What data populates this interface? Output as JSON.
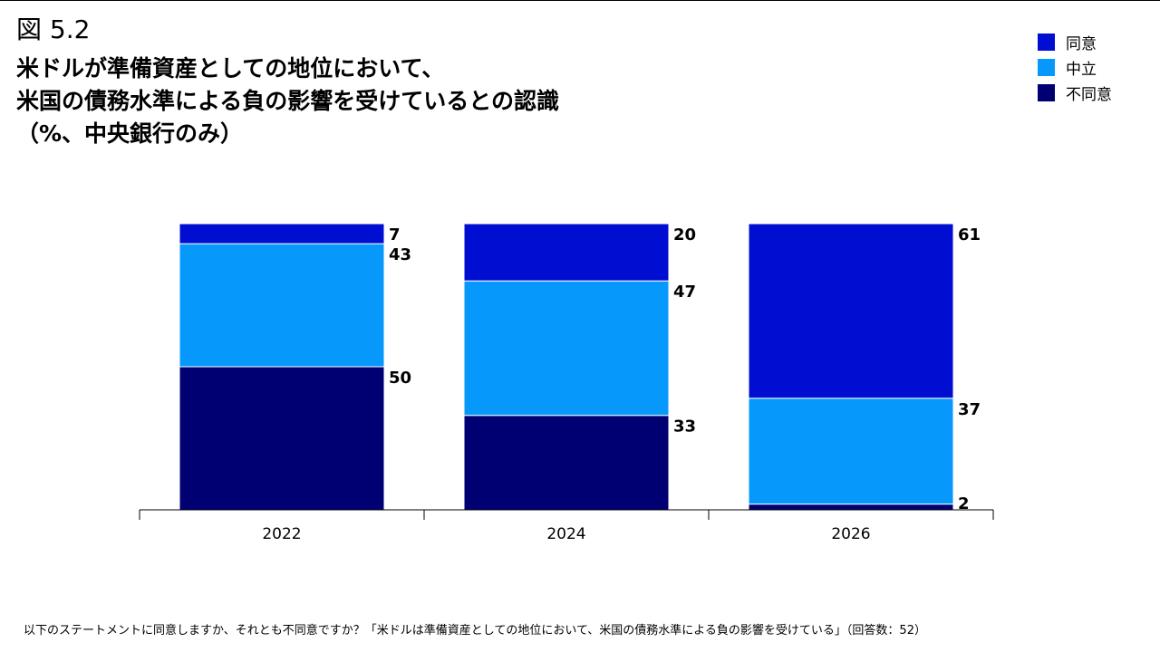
{
  "figure_label": "図 5.2",
  "title_lines": [
    "米ドルが準備資産としての地位において、",
    "米国の債務水準による負の影響を受けているとの認識",
    "（%、中央銀行のみ）"
  ],
  "footnote": "以下のステートメントに同意しますか、それとも不同意ですか？「米ドルは準備資産としての地位において、米国の債務水準による負の影響を受けている」（回答数：52）",
  "chart_data": {
    "type": "bar",
    "stacked": true,
    "categories": [
      "2022",
      "2024",
      "2026"
    ],
    "series": [
      {
        "name": "不同意",
        "color": "#000073",
        "values": [
          50,
          33,
          2
        ]
      },
      {
        "name": "中立",
        "color": "#0699FB",
        "values": [
          43,
          47,
          37
        ]
      },
      {
        "name": "同意",
        "color": "#000ED2",
        "values": [
          7,
          20,
          61
        ]
      }
    ],
    "ylim": [
      0,
      100
    ],
    "legend": [
      {
        "name": "同意",
        "color": "#000ED2"
      },
      {
        "name": "中立",
        "color": "#0699FB"
      },
      {
        "name": "不同意",
        "color": "#000073"
      }
    ],
    "legend_position": "top-right",
    "grid": false
  }
}
